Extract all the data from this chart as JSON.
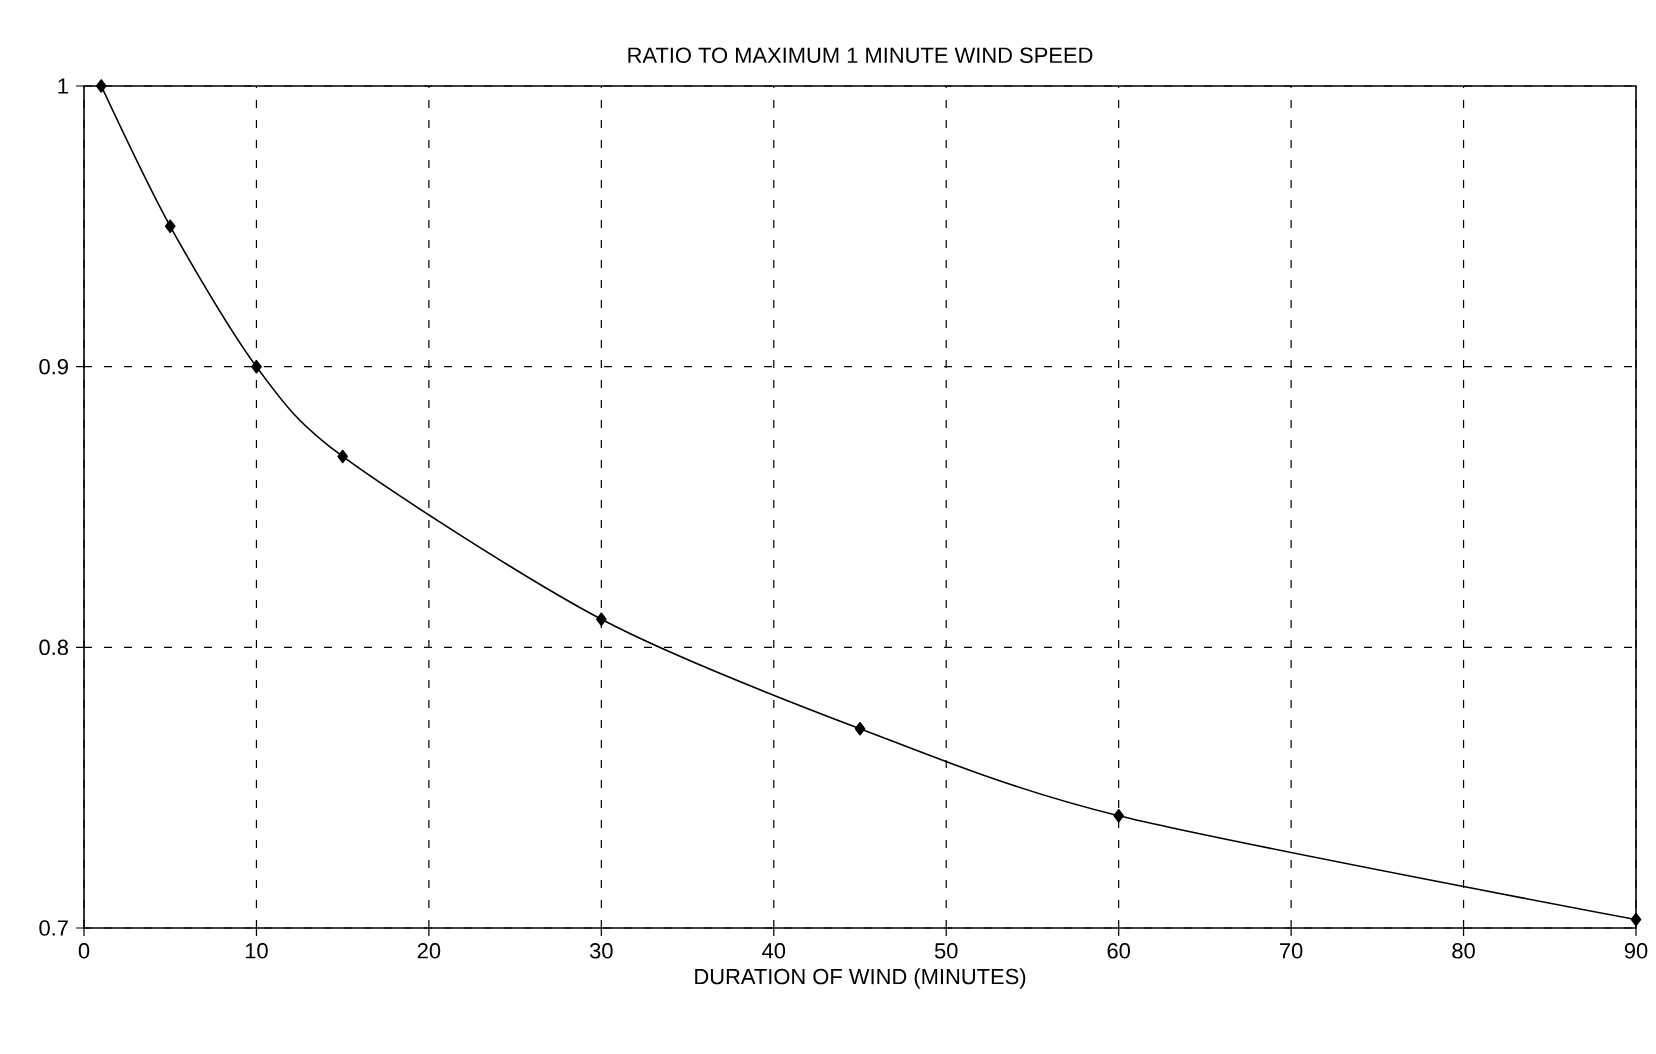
{
  "chart_data": {
    "type": "line",
    "title": "RATIO TO MAXIMUM 1 MINUTE WIND SPEED",
    "xlabel": "DURATION OF WIND (MINUTES)",
    "x": [
      1,
      5,
      10,
      15,
      30,
      45,
      60,
      90
    ],
    "series": [
      {
        "color": "#000000",
        "values": [
          1,
          0.95,
          0.9,
          0.868,
          0.81,
          0.771,
          0.74,
          0.703
        ]
      }
    ],
    "xlim": [
      0,
      90
    ],
    "xticks": [
      0,
      10,
      20,
      30,
      40,
      50,
      60,
      70,
      80,
      90
    ],
    "ylim": [
      0.7,
      1
    ],
    "yticks": [
      0.7,
      0.8,
      0.9,
      1
    ],
    "grid": true,
    "marker": "diamond",
    "line_style": "solid"
  }
}
